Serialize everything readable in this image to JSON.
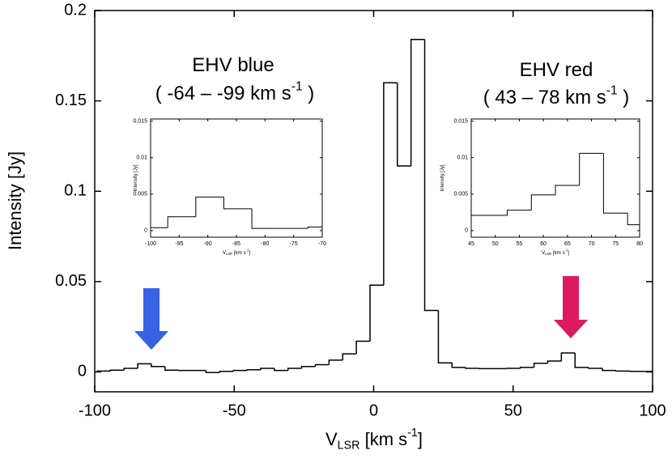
{
  "chart_data": [
    {
      "type": "histogram",
      "xlabel": [
        {
          "text": "V"
        },
        {
          "text": "LSR",
          "shift": "sub"
        },
        {
          "text": " [km s"
        },
        {
          "text": "-1",
          "shift": "sup"
        },
        {
          "text": "]"
        }
      ],
      "ylabel": [
        {
          "text": "Intensity [Jy]"
        }
      ],
      "bins": [
        -99.3,
        -94.4,
        -89.5,
        -84.6,
        -79.7,
        -74.8,
        -69.9,
        -65,
        -60.1,
        -55.2,
        -50.3,
        -45.4,
        -40.5,
        -35.6,
        -30.7,
        -25.8,
        -20.9,
        -16,
        -11.1,
        -6.2,
        -1.3,
        3.6,
        8.5,
        13.4,
        18.3,
        23.2,
        28.1,
        33,
        37.9,
        42.8,
        47.7,
        52.6,
        57.5,
        62.4,
        67.3,
        72.2,
        77.1,
        82,
        86.9,
        91.8,
        96.7,
        101.6
      ],
      "values": [
        0.0005,
        0.001,
        0.002,
        0.0045,
        0.003,
        0.001,
        0.0008,
        0.0008,
        -0.0003,
        0.0003,
        0.0008,
        0.0012,
        0.002,
        0.0008,
        0.002,
        0.003,
        0.004,
        0.0065,
        0.01,
        0.017,
        0.048,
        0.16,
        0.114,
        0.184,
        0.034,
        0.005,
        0.0025,
        0.002,
        0.0018,
        0.0018,
        0.002,
        0.0025,
        0.0048,
        0.006,
        0.0105,
        0.0025,
        0.002,
        0.0008,
        0.0005,
        0.0003,
        0.0003
      ],
      "color": "#000000",
      "xlim": [
        -100,
        100
      ],
      "xticks": [
        -100,
        -50,
        0,
        50,
        100
      ],
      "ylim": [
        -0.011,
        0.2
      ],
      "yticks": [
        0,
        0.05,
        0.1,
        0.15,
        0.2
      ],
      "annotations": [
        {
          "lines": [
            [
              {
                "text": "EHV blue"
              }
            ],
            [
              {
                "text": "( -64 – -99 km s"
              },
              {
                "text": "-1",
                "shift": "sup"
              },
              {
                "text": " )"
              }
            ]
          ]
        },
        {
          "lines": [
            [
              {
                "text": "EHV red"
              }
            ],
            [
              {
                "text": "( 43 – 78 km s"
              },
              {
                "text": "-1",
                "shift": "sup"
              },
              {
                "text": " )"
              }
            ]
          ]
        }
      ]
    },
    {
      "type": "histogram",
      "xlabel": [
        {
          "text": "V"
        },
        {
          "text": "LSR",
          "shift": "sub"
        },
        {
          "text": " [km s"
        },
        {
          "text": "-1",
          "shift": "sup"
        },
        {
          "text": "]"
        }
      ],
      "ylabel": [
        {
          "text": "Intensity [Jy]"
        }
      ],
      "bins": [
        -101.9,
        -97,
        -92.1,
        -87.2,
        -82.3,
        -77.4,
        -72.5,
        -67.6
      ],
      "values": [
        0.0004,
        0.0019,
        0.0046,
        0.003,
        0.0003,
        0.0003,
        0.0005
      ],
      "color": "#000000",
      "xlim": [
        -100,
        -70
      ],
      "xticks": [
        -100,
        -95,
        -90,
        -85,
        -80,
        -75,
        -70
      ],
      "ylim": [
        -0.0009,
        0.0153
      ],
      "yticks": [
        0,
        0.005,
        0.01,
        0.015
      ]
    },
    {
      "type": "histogram",
      "xlabel": [
        {
          "text": "V"
        },
        {
          "text": "LSR",
          "shift": "sub"
        },
        {
          "text": " [km s"
        },
        {
          "text": "-1",
          "shift": "sup"
        },
        {
          "text": "]"
        }
      ],
      "ylabel": [
        {
          "text": "Intensity [Jy]"
        }
      ],
      "bins": [
        42.5,
        47.5,
        52.5,
        57.5,
        62.5,
        67.5,
        72.5,
        77.5,
        82.5
      ],
      "values": [
        0.0021,
        0.0021,
        0.0028,
        0.0049,
        0.0062,
        0.0106,
        0.0024,
        0.0008
      ],
      "color": "#000000",
      "xlim": [
        45,
        80
      ],
      "xticks": [
        45,
        50,
        55,
        60,
        65,
        70,
        75,
        80
      ],
      "ylim": [
        -0.0009,
        0.0153
      ],
      "yticks": [
        0,
        0.005,
        0.01,
        0.015
      ]
    }
  ]
}
